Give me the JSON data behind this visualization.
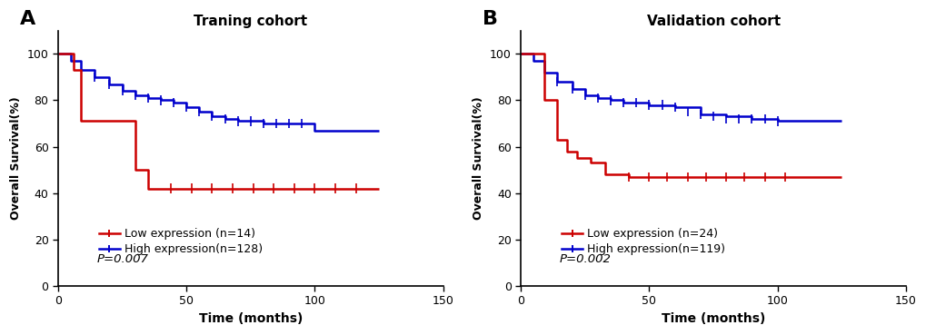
{
  "panel_A": {
    "title": "Traning cohort",
    "low_label": "Low expression (n=14)",
    "high_label": "High expression(n=128)",
    "pvalue": "P=0.007",
    "low_color": "#cc0000",
    "high_color": "#0000cc",
    "low_x": [
      0,
      6,
      6,
      9,
      9,
      12,
      12,
      30,
      30,
      35,
      35,
      42,
      42,
      125
    ],
    "low_y": [
      100,
      100,
      93,
      93,
      71,
      71,
      71,
      71,
      50,
      50,
      42,
      42,
      42,
      42
    ],
    "low_censor_x": [
      44,
      52,
      60,
      68,
      76,
      84,
      92,
      100,
      108,
      116
    ],
    "low_censor_y": 42,
    "high_x": [
      0,
      5,
      5,
      9,
      9,
      14,
      14,
      20,
      20,
      25,
      25,
      30,
      30,
      35,
      35,
      40,
      40,
      45,
      45,
      50,
      50,
      55,
      55,
      60,
      60,
      65,
      65,
      70,
      70,
      80,
      80,
      90,
      90,
      100,
      100,
      110,
      110,
      125
    ],
    "high_y": [
      100,
      100,
      97,
      97,
      93,
      93,
      90,
      90,
      87,
      87,
      84,
      84,
      82,
      82,
      81,
      81,
      80,
      80,
      79,
      79,
      77,
      77,
      75,
      75,
      73,
      73,
      72,
      72,
      71,
      71,
      70,
      70,
      70,
      70,
      67,
      67,
      67,
      67
    ],
    "high_censor_x": [
      14,
      20,
      25,
      30,
      35,
      40,
      45,
      50,
      55,
      60,
      65,
      70,
      75,
      80,
      85,
      90,
      95
    ],
    "high_censor_y": [
      90,
      87,
      84,
      82,
      81,
      80,
      79,
      77,
      75,
      73,
      72,
      71,
      71,
      70,
      70,
      70,
      70
    ]
  },
  "panel_B": {
    "title": "Validation cohort",
    "low_label": "Low expression (n=24)",
    "high_label": "High expression(n=119)",
    "pvalue": "P=0.002",
    "low_color": "#cc0000",
    "high_color": "#0000cc",
    "low_x": [
      0,
      5,
      5,
      9,
      9,
      14,
      14,
      18,
      18,
      22,
      22,
      27,
      27,
      33,
      33,
      38,
      38,
      42,
      42,
      125
    ],
    "low_y": [
      100,
      100,
      100,
      100,
      80,
      80,
      63,
      63,
      58,
      58,
      55,
      55,
      53,
      53,
      48,
      48,
      48,
      48,
      47,
      47
    ],
    "low_censor_x": [
      42,
      50,
      57,
      65,
      72,
      80,
      87,
      95,
      103
    ],
    "low_censor_y": 47,
    "high_x": [
      0,
      5,
      5,
      9,
      9,
      14,
      14,
      20,
      20,
      25,
      25,
      30,
      30,
      35,
      35,
      40,
      40,
      50,
      50,
      60,
      60,
      70,
      70,
      80,
      80,
      90,
      90,
      100,
      100,
      110,
      110,
      125
    ],
    "high_y": [
      100,
      100,
      97,
      97,
      92,
      92,
      88,
      88,
      85,
      85,
      82,
      82,
      81,
      81,
      80,
      80,
      79,
      79,
      78,
      78,
      77,
      77,
      74,
      74,
      73,
      73,
      72,
      72,
      71,
      71,
      71,
      71
    ],
    "high_censor_x": [
      14,
      20,
      25,
      30,
      35,
      40,
      45,
      50,
      55,
      60,
      65,
      70,
      75,
      80,
      85,
      90,
      95,
      100
    ],
    "high_censor_y": [
      88,
      85,
      82,
      81,
      80,
      79,
      79,
      78,
      78,
      77,
      75,
      74,
      73,
      72,
      72,
      72,
      72,
      71
    ]
  },
  "xlabel": "Time (months)",
  "ylabel": "Overall Survival(%)",
  "xlim": [
    0,
    150
  ],
  "ylim": [
    0,
    110
  ],
  "xticks": [
    0,
    50,
    100,
    150
  ],
  "yticks": [
    0,
    20,
    40,
    60,
    80,
    100
  ],
  "bg_color": "#ffffff",
  "spine_color": "#000000",
  "linewidth": 1.8,
  "censor_tick_size": 2.0,
  "censor_lw": 1.2
}
